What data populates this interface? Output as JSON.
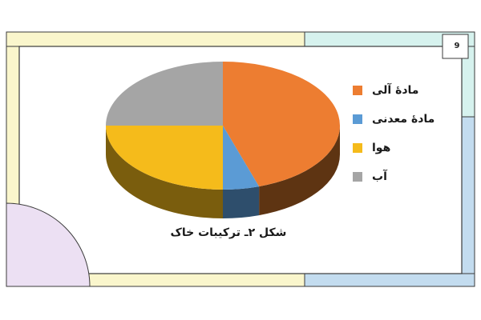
{
  "page": {
    "number": "9"
  },
  "frame_colors": {
    "beige": "#faf6cc",
    "mint": "#d6f2ee",
    "blue": "#c3dcef",
    "lavender": "#ece0f3",
    "border": "#3b3b3b"
  },
  "chart_data": {
    "type": "pie",
    "style": "3d",
    "title": "شکل ۲ـ ترکیبات خاک",
    "slices": [
      {
        "label": "مادهٔ آلی",
        "value": 45,
        "color": "#ed7d31",
        "side_color": "#5e3412"
      },
      {
        "label": "مادهٔ معدنی",
        "value": 5,
        "color": "#5b9bd5",
        "side_color": "#2e4e6c"
      },
      {
        "label": "هوا",
        "value": 25,
        "color": "#f5bb1b",
        "side_color": "#7a5d0d"
      },
      {
        "label": "آب",
        "value": 25,
        "color": "#a5a5a5",
        "side_color": "#5c5c5c"
      }
    ],
    "legend_position": "right"
  }
}
